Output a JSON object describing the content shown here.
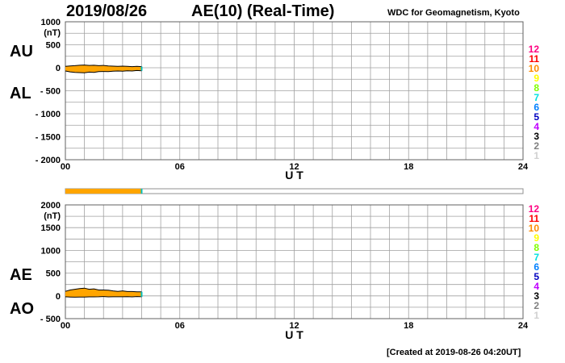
{
  "header": {
    "date": "2019/08/26",
    "title": "AE(10) (Real-Time)",
    "source": "WDC for Geomagnetism, Kyoto"
  },
  "footer": {
    "created": "[Created at 2019-08-26 04:20UT]"
  },
  "colors": {
    "fill": "#ffa500",
    "trace": "#000000",
    "grid": "#a0a0a0",
    "latest": "#00c0c0"
  },
  "legend_stations": [
    {
      "label": "12",
      "color": "#ff0080"
    },
    {
      "label": "11",
      "color": "#ff0000"
    },
    {
      "label": "10",
      "color": "#ff8c00"
    },
    {
      "label": "9",
      "color": "#ffff00"
    },
    {
      "label": "8",
      "color": "#80ff00"
    },
    {
      "label": "7",
      "color": "#00e0e0"
    },
    {
      "label": "6",
      "color": "#0080ff"
    },
    {
      "label": "5",
      "color": "#0000c0"
    },
    {
      "label": "4",
      "color": "#c000ff"
    },
    {
      "label": "3",
      "color": "#000000"
    },
    {
      "label": "2",
      "color": "#808080"
    },
    {
      "label": "1",
      "color": "#d0d0d0"
    }
  ],
  "station_bar": {
    "coverage_hours": 4.0
  },
  "chart_data": [
    {
      "type": "area",
      "xlabel": "U T",
      "ylabel": "(nT)",
      "series_labels": {
        "upper": "AU",
        "lower": "AL"
      },
      "xlim": [
        0,
        24
      ],
      "ylim": [
        -2000,
        1000
      ],
      "xticks": [
        "00",
        "06",
        "12",
        "18",
        "24"
      ],
      "xtick_values": [
        0,
        6,
        12,
        18,
        24
      ],
      "yticks": [
        "1000",
        "500",
        "0",
        "- 500",
        "- 1000",
        "- 1500",
        "- 2000"
      ],
      "ytick_values": [
        1000,
        500,
        0,
        -500,
        -1000,
        -1500,
        -2000
      ],
      "x": [
        0.0,
        0.25,
        0.5,
        0.75,
        1.0,
        1.25,
        1.5,
        1.75,
        2.0,
        2.25,
        2.5,
        2.75,
        3.0,
        3.25,
        3.5,
        3.75,
        4.0
      ],
      "series": [
        {
          "name": "AU",
          "values": [
            30,
            40,
            45,
            55,
            60,
            50,
            55,
            45,
            50,
            40,
            35,
            30,
            35,
            30,
            25,
            30,
            25
          ]
        },
        {
          "name": "AL",
          "values": [
            -70,
            -90,
            -100,
            -105,
            -110,
            -95,
            -100,
            -85,
            -80,
            -85,
            -75,
            -70,
            -75,
            -65,
            -70,
            -60,
            -65
          ]
        }
      ]
    },
    {
      "type": "area",
      "xlabel": "U T",
      "ylabel": "(nT)",
      "series_labels": {
        "upper": "AE",
        "lower": "AO"
      },
      "xlim": [
        0,
        24
      ],
      "ylim": [
        -500,
        2000
      ],
      "xticks": [
        "00",
        "06",
        "12",
        "18",
        "24"
      ],
      "xtick_values": [
        0,
        6,
        12,
        18,
        24
      ],
      "yticks": [
        "2000",
        "1500",
        "1000",
        "500",
        "0",
        "- 500"
      ],
      "ytick_values": [
        2000,
        1500,
        1000,
        500,
        0,
        -500
      ],
      "x": [
        0.0,
        0.25,
        0.5,
        0.75,
        1.0,
        1.25,
        1.5,
        1.75,
        2.0,
        2.25,
        2.5,
        2.75,
        3.0,
        3.25,
        3.5,
        3.75,
        4.0
      ],
      "series": [
        {
          "name": "AE",
          "values": [
            100,
            130,
            145,
            160,
            170,
            145,
            155,
            130,
            130,
            125,
            110,
            100,
            110,
            95,
            95,
            90,
            90
          ]
        },
        {
          "name": "AO",
          "values": [
            -20,
            -25,
            -28,
            -25,
            -25,
            -22,
            -22,
            -20,
            -15,
            -22,
            -20,
            -20,
            -20,
            -18,
            -22,
            -15,
            -20
          ]
        }
      ]
    }
  ]
}
